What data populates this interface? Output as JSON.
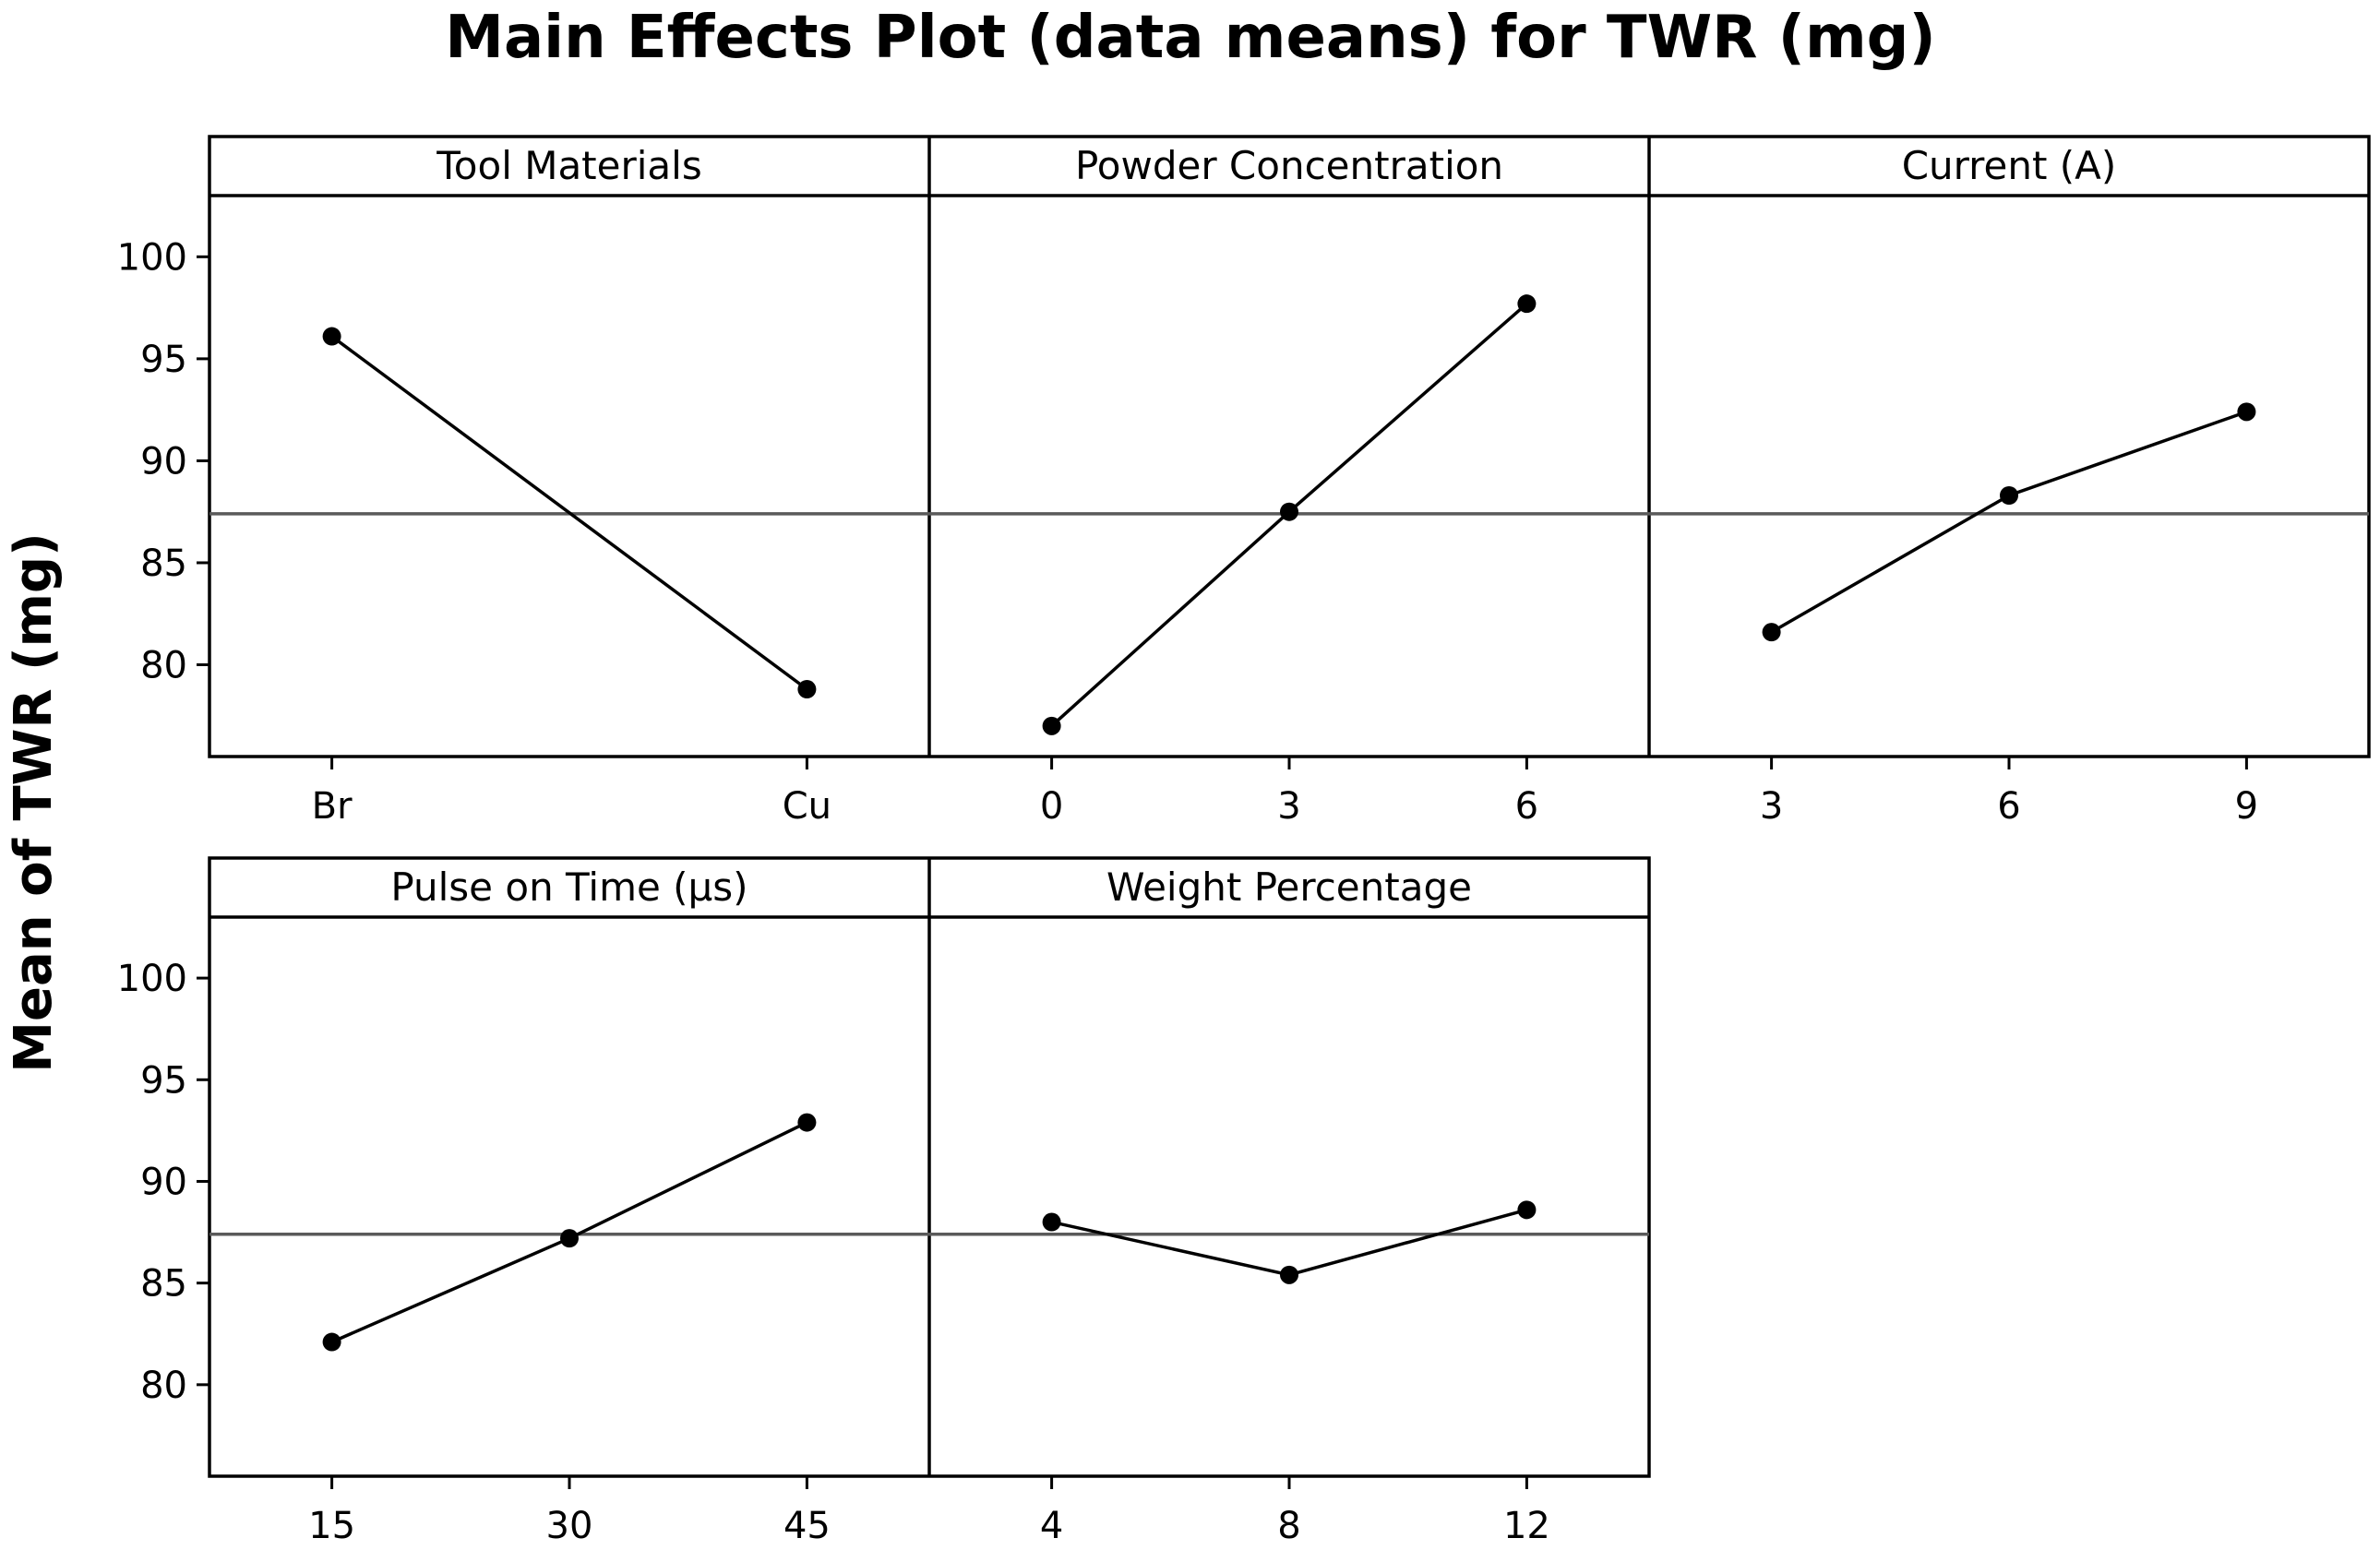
{
  "chart_data": {
    "type": "line",
    "title": "Main Effects Plot (data means) for TWR (mg)",
    "ylabel": "Mean of TWR (mg)",
    "ylim": [
      75.5,
      103
    ],
    "yticks": [
      80,
      85,
      90,
      95,
      100
    ],
    "overall_mean": 87.4,
    "grid": false,
    "panels": [
      {
        "name": "Tool Materials",
        "categories": [
          "Br",
          "Cu"
        ],
        "values": [
          96.1,
          78.8
        ]
      },
      {
        "name": "Powder Concentration",
        "categories": [
          "0",
          "3",
          "6"
        ],
        "values": [
          77.0,
          87.5,
          97.7
        ]
      },
      {
        "name": "Current (A)",
        "categories": [
          "3",
          "6",
          "9"
        ],
        "values": [
          81.6,
          88.3,
          92.4
        ]
      },
      {
        "name": "Pulse on Time (μs)",
        "categories": [
          "15",
          "30",
          "45"
        ],
        "values": [
          82.1,
          87.2,
          92.9
        ]
      },
      {
        "name": "Weight Percentage",
        "categories": [
          "4",
          "8",
          "12"
        ],
        "values": [
          88.0,
          85.4,
          88.6
        ]
      }
    ]
  }
}
